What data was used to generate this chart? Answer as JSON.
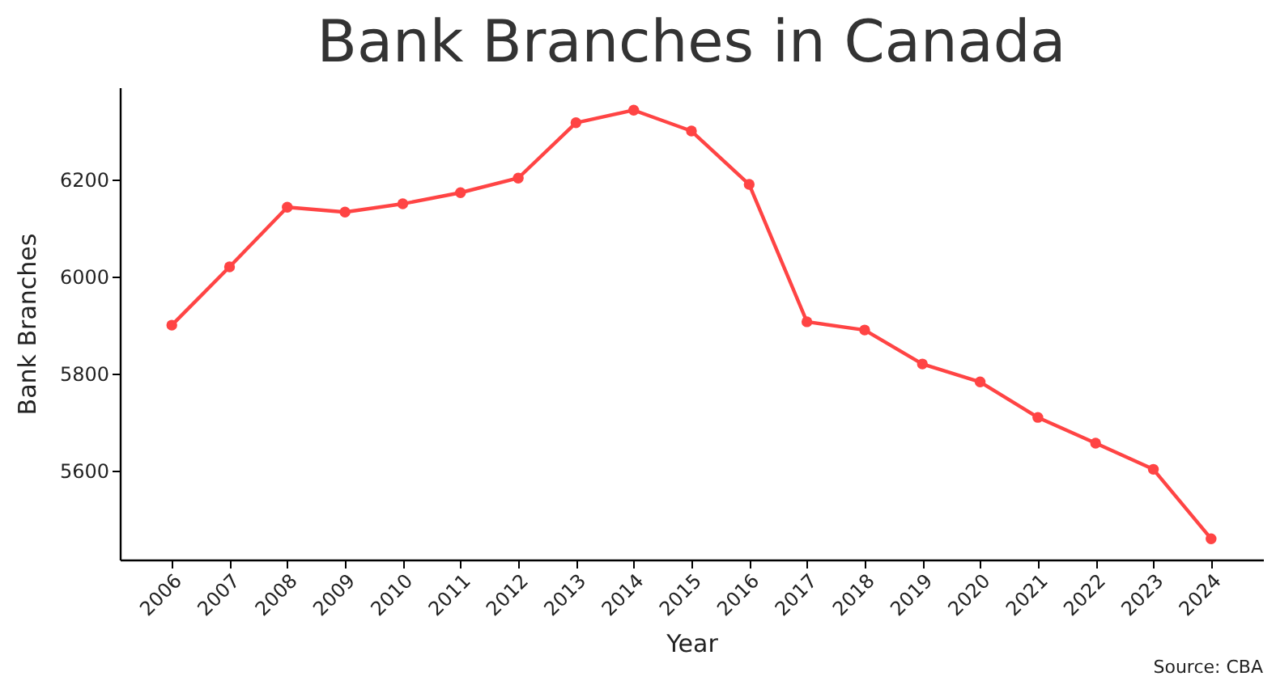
{
  "chart_data": {
    "type": "line",
    "title": "Bank Branches in Canada",
    "xlabel": "Year",
    "ylabel": "Bank Branches",
    "categories": [
      "2006",
      "2007",
      "2008",
      "2009",
      "2010",
      "2011",
      "2012",
      "2013",
      "2014",
      "2015",
      "2016",
      "2017",
      "2018",
      "2019",
      "2020",
      "2021",
      "2022",
      "2023",
      "2024"
    ],
    "series": [
      {
        "color": "#ff4444",
        "values": [
          5900,
          6020,
          6143,
          6133,
          6150,
          6173,
          6203,
          6317,
          6343,
          6300,
          6190,
          5907,
          5890,
          5820,
          5783,
          5710,
          5657,
          5603,
          5460
        ]
      }
    ],
    "ylim": [
      5417,
      6390
    ],
    "yticks": [
      5600,
      5800,
      6000,
      6200
    ],
    "grid": false,
    "marker": "circle",
    "line_style": "solid",
    "annotations": [
      "Source: CBA"
    ]
  }
}
